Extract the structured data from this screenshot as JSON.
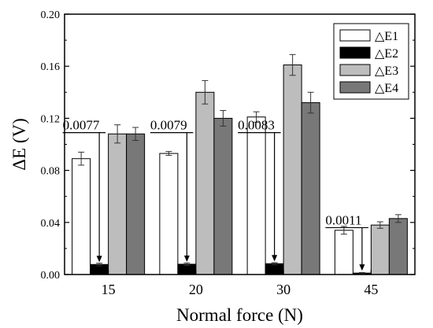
{
  "chart_data": {
    "type": "bar",
    "categories": [
      "15",
      "20",
      "30",
      "45"
    ],
    "xlabel": "Normal force (N)",
    "ylabel": "ΔE (V)",
    "ylim": [
      0,
      0.2
    ],
    "yticks": [
      "0.00",
      "0.04",
      "0.08",
      "0.12",
      "0.16",
      "0.20"
    ],
    "grid": false,
    "legend_position": "top-right",
    "series": [
      {
        "name": "△E1",
        "values": [
          0.089,
          0.093,
          0.121,
          0.034
        ],
        "errors": [
          0.005,
          0.0015,
          0.004,
          0.003
        ],
        "color": "#ffffff"
      },
      {
        "name": "△E2",
        "values": [
          0.0077,
          0.0079,
          0.0083,
          0.0011
        ],
        "errors": [
          0.001,
          0.001,
          0.0008,
          0.0004
        ],
        "color": "#000000"
      },
      {
        "name": "△E3",
        "values": [
          0.108,
          0.14,
          0.161,
          0.038
        ],
        "errors": [
          0.007,
          0.009,
          0.008,
          0.0025
        ],
        "color": "#bdbdbd"
      },
      {
        "name": "△E4",
        "values": [
          0.108,
          0.12,
          0.132,
          0.043
        ],
        "errors": [
          0.005,
          0.006,
          0.008,
          0.003
        ],
        "color": "#787878"
      }
    ],
    "annotations": [
      {
        "text": "0.0077",
        "category": "15"
      },
      {
        "text": "0.0079",
        "category": "20"
      },
      {
        "text": "0.0083",
        "category": "30"
      },
      {
        "text": "0.0011",
        "category": "45"
      }
    ]
  }
}
